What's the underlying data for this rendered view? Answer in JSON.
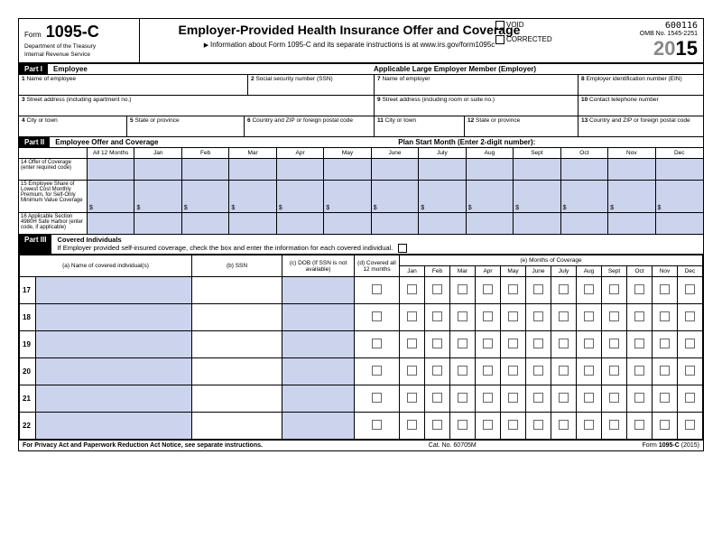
{
  "header": {
    "form_label": "Form",
    "form_number": "1095-C",
    "dept1": "Department of the Treasury",
    "dept2": "Internal Revenue Service",
    "title": "Employer-Provided Health Insurance Offer and Coverage",
    "subtitle": "Information about Form 1095-C and its separate instructions is at www.irs.gov/form1095c",
    "code": "600116",
    "omb": "OMB No. 1545-2251",
    "year_prefix": "20",
    "year_suffix": "15",
    "void": "VOID",
    "corrected": "CORRECTED"
  },
  "part1": {
    "label": "Part I",
    "emp_title": "Employee",
    "employer_title": "Applicable Large Employer Member (Employer)",
    "f1": "1",
    "f1t": "Name of employee",
    "f2": "2",
    "f2t": "Social security number (SSN)",
    "f3": "3",
    "f3t": "Street address (including apartment no.)",
    "f4": "4",
    "f4t": "City or town",
    "f5": "5",
    "f5t": "State or province",
    "f6": "6",
    "f6t": "Country and ZIP or foreign postal code",
    "f7": "7",
    "f7t": "Name of employer",
    "f8": "8",
    "f8t": "Employer identification number (EIN)",
    "f9": "9",
    "f9t": "Street address (including room or suite no.)",
    "f10": "10",
    "f10t": "Contact telephone number",
    "f11": "11",
    "f11t": "City or town",
    "f12": "12",
    "f12t": "State or province",
    "f13": "13",
    "f13t": "Country and ZIP or foreign postal code"
  },
  "part2": {
    "label": "Part II",
    "title": "Employee Offer and Coverage",
    "plan": "Plan Start Month (Enter 2-digit number):",
    "all12": "All 12 Months",
    "months": [
      "Jan",
      "Feb",
      "Mar",
      "Apr",
      "May",
      "June",
      "July",
      "Aug",
      "Sept",
      "Oct",
      "Nov",
      "Dec"
    ],
    "r14n": "14",
    "r14": "Offer of Coverage (enter required code)",
    "r15n": "15",
    "r15": "Employee Share of Lowest Cost Monthly Premium, for Self-Only Minimum Value Coverage",
    "r16n": "16",
    "r16": "Applicable Section 4980H Safe Harbor (enter code, if applicable)"
  },
  "part3": {
    "label": "Part III",
    "title": "Covered Individuals",
    "instr": "If Employer provided self-insured coverage, check the box and enter the information for each covered individual.",
    "ca": "(a) Name of covered individual(s)",
    "cb": "(b) SSN",
    "cc": "(c) DOB (If SSN is not available)",
    "cd": "(d) Covered all 12 months",
    "ce": "(e) Months of Coverage",
    "months": [
      "Jan",
      "Feb",
      "Mar",
      "Apr",
      "May",
      "June",
      "July",
      "Aug",
      "Sept",
      "Oct",
      "Nov",
      "Dec"
    ],
    "rows": [
      "17",
      "18",
      "19",
      "20",
      "21",
      "22"
    ]
  },
  "footer": {
    "left": "For Privacy Act and Paperwork Reduction Act Notice, see separate instructions.",
    "mid": "Cat. No. 60705M",
    "right_a": "Form",
    "right_b": "1095-C",
    "right_c": "(2015)"
  }
}
